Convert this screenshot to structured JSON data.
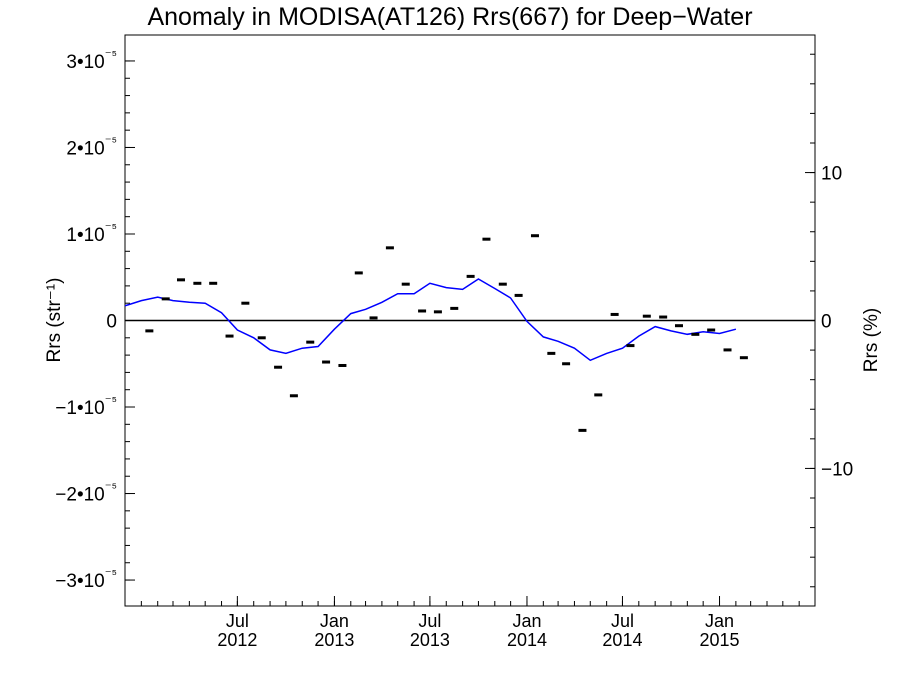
{
  "chart_data": {
    "type": "line",
    "title": "Anomaly in MODISA(AT126) Rrs(667) for Deep−Water",
    "ylabel_left": "Rrs (str⁻¹)",
    "ylabel_right": "Rrs (%)",
    "xlim": [
      "2011-12-01",
      "2015-07-01"
    ],
    "ylim_left": [
      -3.3e-05,
      3.3e-05
    ],
    "ylim_right": [
      -19.3,
      19.3
    ],
    "left_ticks": [
      {
        "value": 3e-05,
        "label": "3•10⁻⁵"
      },
      {
        "value": 2e-05,
        "label": "2•10⁻⁵"
      },
      {
        "value": 1e-05,
        "label": "1•10⁻⁵"
      },
      {
        "value": 0,
        "label": "0"
      },
      {
        "value": -1e-05,
        "label": "−1•10⁻⁵"
      },
      {
        "value": -2e-05,
        "label": "−2•10⁻⁵"
      },
      {
        "value": -3e-05,
        "label": "−3•10⁻⁵"
      }
    ],
    "right_ticks": [
      {
        "value": 10,
        "label": "10"
      },
      {
        "value": 0,
        "label": "0"
      },
      {
        "value": -10,
        "label": "−10"
      }
    ],
    "x_ticks": [
      {
        "date": "2012-07-01",
        "month": "Jul",
        "year": "2012"
      },
      {
        "date": "2013-01-01",
        "month": "Jan",
        "year": "2013"
      },
      {
        "date": "2013-07-01",
        "month": "Jul",
        "year": "2013"
      },
      {
        "date": "2014-01-01",
        "month": "Jan",
        "year": "2014"
      },
      {
        "date": "2014-07-01",
        "month": "Jul",
        "year": "2014"
      },
      {
        "date": "2015-01-01",
        "month": "Jan",
        "year": "2015"
      }
    ],
    "zero_line": true,
    "series": [
      {
        "kind": "monthly-anomaly-markers",
        "color": "#000000",
        "points": [
          {
            "x": "2012-01-01",
            "y": -1.2e-06
          },
          {
            "x": "2012-02-01",
            "y": 2.5e-06
          },
          {
            "x": "2012-03-01",
            "y": 4.7e-06
          },
          {
            "x": "2012-04-01",
            "y": 4.3e-06
          },
          {
            "x": "2012-05-01",
            "y": 4.3e-06
          },
          {
            "x": "2012-06-01",
            "y": -1.8e-06
          },
          {
            "x": "2012-07-01",
            "y": 2e-06
          },
          {
            "x": "2012-08-01",
            "y": -2e-06
          },
          {
            "x": "2012-09-01",
            "y": -5.4e-06
          },
          {
            "x": "2012-10-01",
            "y": -8.7e-06
          },
          {
            "x": "2012-11-01",
            "y": -2.5e-06
          },
          {
            "x": "2012-12-01",
            "y": -4.8e-06
          },
          {
            "x": "2013-01-01",
            "y": -5.2e-06
          },
          {
            "x": "2013-02-01",
            "y": 5.5e-06
          },
          {
            "x": "2013-03-01",
            "y": 3e-07
          },
          {
            "x": "2013-04-01",
            "y": 8.4e-06
          },
          {
            "x": "2013-05-01",
            "y": 4.2e-06
          },
          {
            "x": "2013-06-01",
            "y": 1.1e-06
          },
          {
            "x": "2013-07-01",
            "y": 1e-06
          },
          {
            "x": "2013-08-01",
            "y": 1.4e-06
          },
          {
            "x": "2013-09-01",
            "y": 5.1e-06
          },
          {
            "x": "2013-10-01",
            "y": 9.4e-06
          },
          {
            "x": "2013-11-01",
            "y": 4.2e-06
          },
          {
            "x": "2013-12-01",
            "y": 2.9e-06
          },
          {
            "x": "2014-01-01",
            "y": 9.8e-06
          },
          {
            "x": "2014-02-01",
            "y": -3.8e-06
          },
          {
            "x": "2014-03-01",
            "y": -5e-06
          },
          {
            "x": "2014-04-01",
            "y": -1.27e-05
          },
          {
            "x": "2014-05-01",
            "y": -8.6e-06
          },
          {
            "x": "2014-06-01",
            "y": 7e-07
          },
          {
            "x": "2014-07-01",
            "y": -2.9e-06
          },
          {
            "x": "2014-08-01",
            "y": 5e-07
          },
          {
            "x": "2014-09-01",
            "y": 4e-07
          },
          {
            "x": "2014-10-01",
            "y": -6e-07
          },
          {
            "x": "2014-11-01",
            "y": -1.6e-06
          },
          {
            "x": "2014-12-01",
            "y": -1.1e-06
          },
          {
            "x": "2015-01-01",
            "y": -3.4e-06
          },
          {
            "x": "2015-02-01",
            "y": -4.3e-06
          }
        ]
      },
      {
        "kind": "smoothed-line",
        "color": "#0000ff",
        "points": [
          {
            "x": "2011-12-01",
            "y": 1.7e-06
          },
          {
            "x": "2012-01-01",
            "y": 2.3e-06
          },
          {
            "x": "2012-02-01",
            "y": 2.7e-06
          },
          {
            "x": "2012-03-01",
            "y": 2.3e-06
          },
          {
            "x": "2012-04-01",
            "y": 2.1e-06
          },
          {
            "x": "2012-05-01",
            "y": 2e-06
          },
          {
            "x": "2012-06-01",
            "y": 9e-07
          },
          {
            "x": "2012-07-01",
            "y": -1.1e-06
          },
          {
            "x": "2012-08-01",
            "y": -2e-06
          },
          {
            "x": "2012-09-01",
            "y": -3.4e-06
          },
          {
            "x": "2012-10-01",
            "y": -3.8e-06
          },
          {
            "x": "2012-11-01",
            "y": -3.2e-06
          },
          {
            "x": "2012-12-01",
            "y": -3e-06
          },
          {
            "x": "2013-01-01",
            "y": -1e-06
          },
          {
            "x": "2013-02-01",
            "y": 8e-07
          },
          {
            "x": "2013-03-01",
            "y": 1.3e-06
          },
          {
            "x": "2013-04-01",
            "y": 2.1e-06
          },
          {
            "x": "2013-05-01",
            "y": 3.1e-06
          },
          {
            "x": "2013-06-01",
            "y": 3.1e-06
          },
          {
            "x": "2013-07-01",
            "y": 4.3e-06
          },
          {
            "x": "2013-08-01",
            "y": 3.8e-06
          },
          {
            "x": "2013-09-01",
            "y": 3.6e-06
          },
          {
            "x": "2013-10-01",
            "y": 4.8e-06
          },
          {
            "x": "2013-11-01",
            "y": 3.7e-06
          },
          {
            "x": "2013-12-01",
            "y": 2.6e-06
          },
          {
            "x": "2014-01-01",
            "y": -1e-07
          },
          {
            "x": "2014-02-01",
            "y": -1.9e-06
          },
          {
            "x": "2014-03-01",
            "y": -2.4e-06
          },
          {
            "x": "2014-04-01",
            "y": -3.2e-06
          },
          {
            "x": "2014-05-01",
            "y": -4.6e-06
          },
          {
            "x": "2014-06-01",
            "y": -3.8e-06
          },
          {
            "x": "2014-07-01",
            "y": -3.2e-06
          },
          {
            "x": "2014-08-01",
            "y": -1.8e-06
          },
          {
            "x": "2014-09-01",
            "y": -7e-07
          },
          {
            "x": "2014-10-01",
            "y": -1.2e-06
          },
          {
            "x": "2014-11-01",
            "y": -1.6e-06
          },
          {
            "x": "2014-12-01",
            "y": -1.3e-06
          },
          {
            "x": "2015-01-01",
            "y": -1.5e-06
          },
          {
            "x": "2015-02-01",
            "y": -1e-06
          }
        ]
      }
    ]
  }
}
